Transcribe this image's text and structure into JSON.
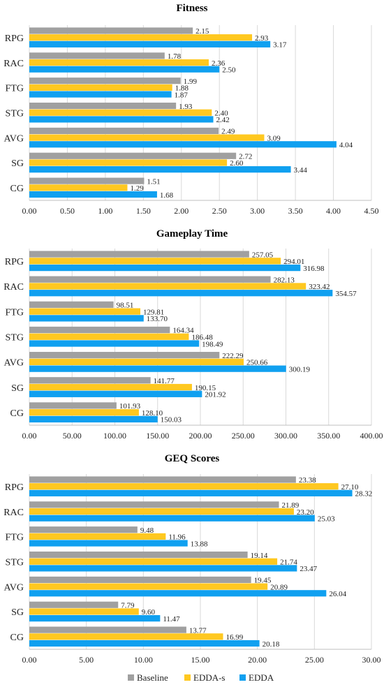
{
  "chart_data": [
    {
      "type": "bar",
      "orientation": "horizontal",
      "title": "Fitness",
      "categories": [
        "RPG",
        "RAC",
        "FTG",
        "STG",
        "AVG",
        "SG",
        "CG"
      ],
      "series": [
        {
          "name": "Baseline",
          "color": "#a0a0a0",
          "values": [
            2.15,
            1.78,
            1.99,
            1.93,
            2.49,
            2.72,
            1.51
          ],
          "labels": [
            "2.15",
            "1.78",
            "1.99",
            "1.93",
            "2.49",
            "2.72",
            "1.51"
          ]
        },
        {
          "name": "EDDA-s",
          "color": "#ffc820",
          "values": [
            2.93,
            2.36,
            1.88,
            2.4,
            3.09,
            2.6,
            1.29
          ],
          "labels": [
            "2.93",
            "2.36",
            "1.88",
            "2.40",
            "3.09",
            "2.60",
            "1.29"
          ]
        },
        {
          "name": "EDDA",
          "color": "#10a0f0",
          "values": [
            3.17,
            2.5,
            1.87,
            2.42,
            4.04,
            3.44,
            1.68
          ],
          "labels": [
            "3.17",
            "2.50",
            "1.87",
            "2.42",
            "4.04",
            "3.44",
            "1.68"
          ]
        }
      ],
      "xlim": [
        0,
        4.5
      ],
      "xticks": [
        "0.00",
        "0.50",
        "1.00",
        "1.50",
        "2.00",
        "2.50",
        "3.00",
        "3.50",
        "4.00",
        "4.50"
      ],
      "xtick_values": [
        0,
        0.5,
        1,
        1.5,
        2,
        2.5,
        3,
        3.5,
        4,
        4.5
      ],
      "grid": "vertical"
    },
    {
      "type": "bar",
      "orientation": "horizontal",
      "title": "Gameplay Time",
      "categories": [
        "RPG",
        "RAC",
        "FTG",
        "STG",
        "AVG",
        "SG",
        "CG"
      ],
      "series": [
        {
          "name": "Baseline",
          "color": "#a0a0a0",
          "values": [
            257.05,
            282.13,
            98.51,
            164.34,
            222.29,
            141.77,
            101.93
          ],
          "labels": [
            "257.05",
            "282.13",
            "98.51",
            "164.34",
            "222.29",
            "141.77",
            "101.93"
          ]
        },
        {
          "name": "EDDA-s",
          "color": "#ffc820",
          "values": [
            294.01,
            323.42,
            129.81,
            186.48,
            250.66,
            190.15,
            128.1
          ],
          "labels": [
            "294.01",
            "323.42",
            "129.81",
            "186.48",
            "250.66",
            "190.15",
            "128.10"
          ]
        },
        {
          "name": "EDDA",
          "color": "#10a0f0",
          "values": [
            316.98,
            354.57,
            133.7,
            198.49,
            300.19,
            201.92,
            150.03
          ],
          "labels": [
            "316.98",
            "354.57",
            "133.70",
            "198.49",
            "300.19",
            "201.92",
            "150.03"
          ]
        }
      ],
      "xlim": [
        0,
        400
      ],
      "xticks": [
        "0.00",
        "50.00",
        "100.00",
        "150.00",
        "200.00",
        "250.00",
        "300.00",
        "350.00",
        "400.00"
      ],
      "xtick_values": [
        0,
        50,
        100,
        150,
        200,
        250,
        300,
        350,
        400
      ],
      "grid": "vertical"
    },
    {
      "type": "bar",
      "orientation": "horizontal",
      "title": "GEQ Scores",
      "categories": [
        "RPG",
        "RAC",
        "FTG",
        "STG",
        "AVG",
        "SG",
        "CG"
      ],
      "series": [
        {
          "name": "Baseline",
          "color": "#a0a0a0",
          "values": [
            23.38,
            21.89,
            9.48,
            19.14,
            19.45,
            7.79,
            13.77
          ],
          "labels": [
            "23.38",
            "21.89",
            "9.48",
            "19.14",
            "19.45",
            "7.79",
            "13.77"
          ]
        },
        {
          "name": "EDDA-s",
          "color": "#ffc820",
          "values": [
            27.1,
            23.2,
            11.96,
            21.74,
            20.89,
            9.6,
            16.99
          ],
          "labels": [
            "27.10",
            "23.20",
            "11.96",
            "21.74",
            "20.89",
            "9.60",
            "16.99"
          ]
        },
        {
          "name": "EDDA",
          "color": "#10a0f0",
          "values": [
            28.32,
            25.03,
            13.88,
            23.47,
            26.04,
            11.47,
            20.18
          ],
          "labels": [
            "28.32",
            "25.03",
            "13.88",
            "23.47",
            "26.04",
            "11.47",
            "20.18"
          ]
        }
      ],
      "xlim": [
        0,
        30
      ],
      "xticks": [
        "0.00",
        "5.00",
        "10.00",
        "15.00",
        "20.00",
        "25.00",
        "30.00"
      ],
      "xtick_values": [
        0,
        5,
        10,
        15,
        20,
        25,
        30
      ],
      "grid": "vertical"
    }
  ],
  "legend": {
    "placement": "bottom",
    "items": [
      {
        "name": "Baseline",
        "color": "#a0a0a0"
      },
      {
        "name": "EDDA-s",
        "color": "#ffc820"
      },
      {
        "name": "EDDA",
        "color": "#10a0f0"
      }
    ]
  }
}
